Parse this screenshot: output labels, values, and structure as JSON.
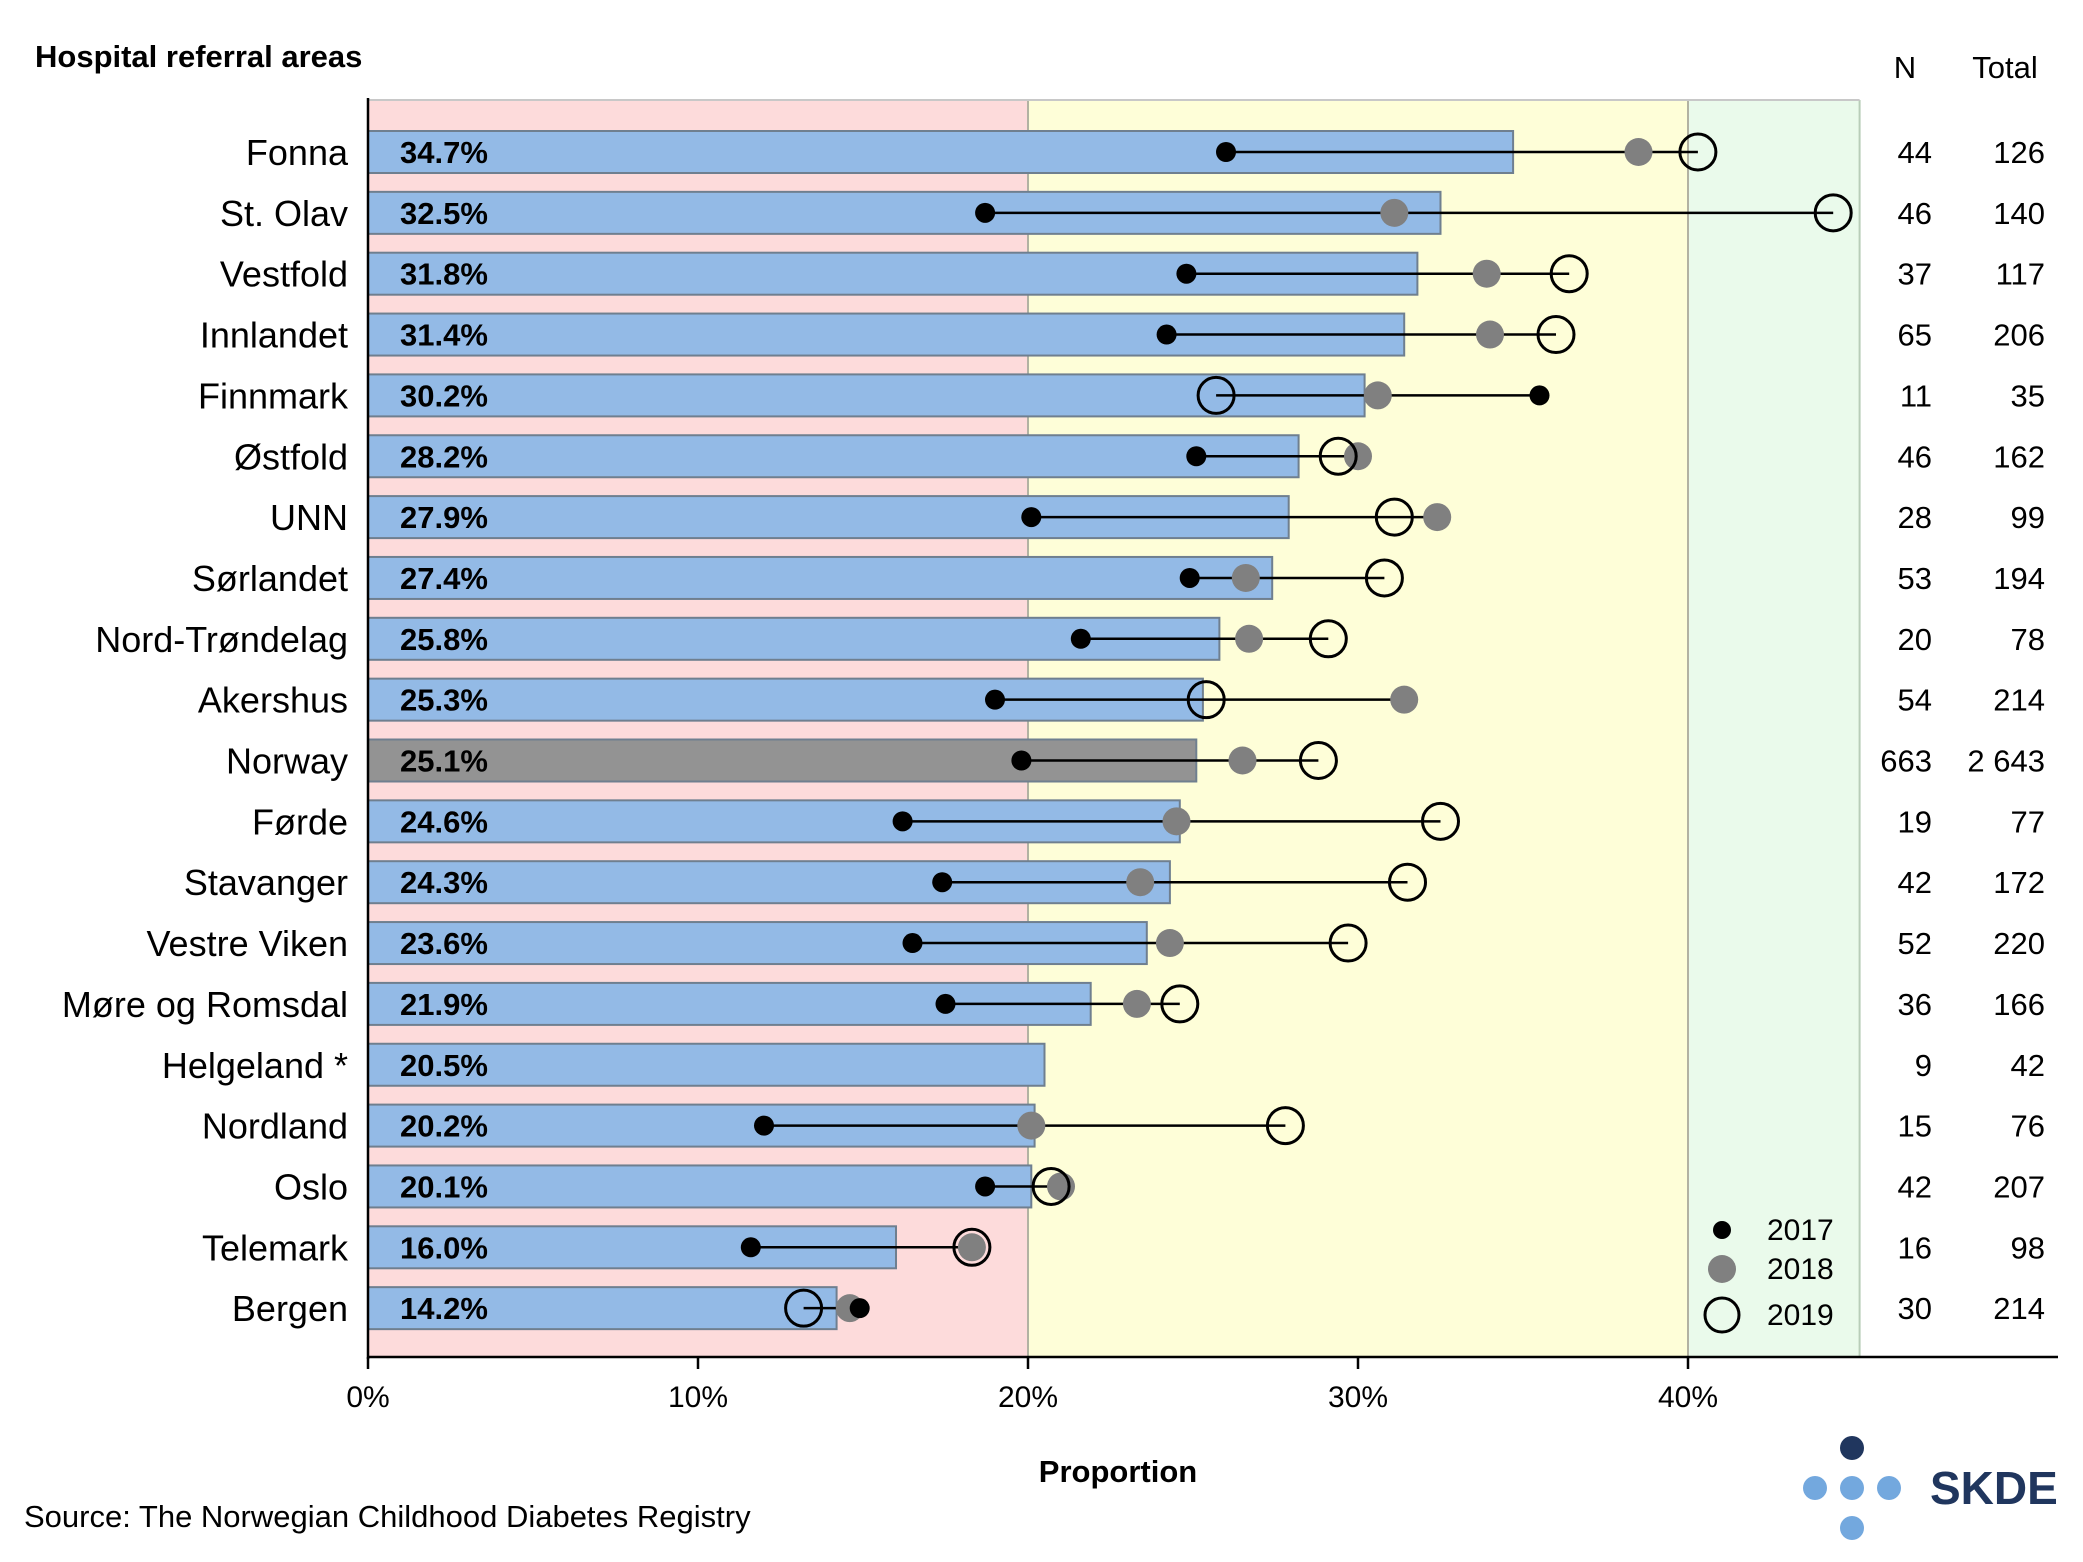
{
  "header": {
    "title": "Hospital referral areas",
    "col_n": "N",
    "col_total": "Total"
  },
  "source": "Source: The Norwegian Childhood Diabetes Registry",
  "logo": {
    "text": "SKDE",
    "dark_color": "#20365e",
    "light_color": "#73a8de"
  },
  "colors": {
    "bar": "#93bae6",
    "bar_highlight": "#939393",
    "zone_low": "#fddbdb",
    "zone_mid": "#fefed8",
    "zone_high": "#eafaeb",
    "marker_2017": "#000000",
    "marker_2018": "#808080"
  },
  "chart_data": {
    "type": "bar",
    "orientation": "horizontal",
    "xlabel": "Proportion",
    "xlim": [
      0,
      0.52
    ],
    "x_ticks": [
      0,
      0.1,
      0.2,
      0.3,
      0.4
    ],
    "x_tick_labels": [
      "0%",
      "10%",
      "20%",
      "30%",
      "40%"
    ],
    "zones": [
      {
        "from": 0,
        "to": 0.2,
        "level": "low"
      },
      {
        "from": 0.2,
        "to": 0.4,
        "level": "mid"
      },
      {
        "from": 0.4,
        "to": 0.452,
        "level": "high"
      }
    ],
    "legend": {
      "position": "bottom-right",
      "entries": [
        {
          "label": "2017",
          "marker": "filled-black"
        },
        {
          "label": "2018",
          "marker": "filled-gray"
        },
        {
          "label": "2019",
          "marker": "open-circle"
        }
      ]
    },
    "categories": [
      {
        "name": "Fonna",
        "value": 0.347,
        "label": "34.7%",
        "y2017": 0.26,
        "y2018": 0.385,
        "y2019": 0.403,
        "n": "44",
        "total": "126"
      },
      {
        "name": "St. Olav",
        "value": 0.325,
        "label": "32.5%",
        "y2017": 0.187,
        "y2018": 0.311,
        "y2019": 0.444,
        "n": "46",
        "total": "140"
      },
      {
        "name": "Vestfold",
        "value": 0.318,
        "label": "31.8%",
        "y2017": 0.248,
        "y2018": 0.339,
        "y2019": 0.364,
        "n": "37",
        "total": "117"
      },
      {
        "name": "Innlandet",
        "value": 0.314,
        "label": "31.4%",
        "y2017": 0.242,
        "y2018": 0.34,
        "y2019": 0.36,
        "n": "65",
        "total": "206"
      },
      {
        "name": "Finnmark",
        "value": 0.302,
        "label": "30.2%",
        "y2017": 0.355,
        "y2018": 0.306,
        "y2019": 0.257,
        "n": "11",
        "total": "35"
      },
      {
        "name": "Østfold",
        "value": 0.282,
        "label": "28.2%",
        "y2017": 0.251,
        "y2018": 0.3,
        "y2019": 0.294,
        "n": "46",
        "total": "162"
      },
      {
        "name": "UNN",
        "value": 0.279,
        "label": "27.9%",
        "y2017": 0.201,
        "y2018": 0.324,
        "y2019": 0.311,
        "n": "28",
        "total": "99"
      },
      {
        "name": "Sørlandet",
        "value": 0.274,
        "label": "27.4%",
        "y2017": 0.249,
        "y2018": 0.266,
        "y2019": 0.308,
        "n": "53",
        "total": "194"
      },
      {
        "name": "Nord-Trøndelag",
        "value": 0.258,
        "label": "25.8%",
        "y2017": 0.216,
        "y2018": 0.267,
        "y2019": 0.291,
        "n": "20",
        "total": "78"
      },
      {
        "name": "Akershus",
        "value": 0.253,
        "label": "25.3%",
        "y2017": 0.19,
        "y2018": 0.314,
        "y2019": 0.254,
        "n": "54",
        "total": "214"
      },
      {
        "name": "Norway",
        "value": 0.251,
        "label": "25.1%",
        "y2017": 0.198,
        "y2018": 0.265,
        "y2019": 0.288,
        "n": "663",
        "total": "2 643",
        "highlight": true
      },
      {
        "name": "Førde",
        "value": 0.246,
        "label": "24.6%",
        "y2017": 0.162,
        "y2018": 0.245,
        "y2019": 0.325,
        "n": "19",
        "total": "77"
      },
      {
        "name": "Stavanger",
        "value": 0.243,
        "label": "24.3%",
        "y2017": 0.174,
        "y2018": 0.234,
        "y2019": 0.315,
        "n": "42",
        "total": "172"
      },
      {
        "name": "Vestre Viken",
        "value": 0.236,
        "label": "23.6%",
        "y2017": 0.165,
        "y2018": 0.243,
        "y2019": 0.297,
        "n": "52",
        "total": "220"
      },
      {
        "name": "Møre og Romsdal",
        "value": 0.219,
        "label": "21.9%",
        "y2017": 0.175,
        "y2018": 0.233,
        "y2019": 0.246,
        "n": "36",
        "total": "166"
      },
      {
        "name": "Helgeland *",
        "value": 0.205,
        "label": "20.5%",
        "y2017": null,
        "y2018": null,
        "y2019": null,
        "n": "9",
        "total": "42"
      },
      {
        "name": "Nordland",
        "value": 0.202,
        "label": "20.2%",
        "y2017": 0.12,
        "y2018": 0.201,
        "y2019": 0.278,
        "n": "15",
        "total": "76"
      },
      {
        "name": "Oslo",
        "value": 0.201,
        "label": "20.1%",
        "y2017": 0.187,
        "y2018": 0.21,
        "y2019": 0.207,
        "n": "42",
        "total": "207"
      },
      {
        "name": "Telemark",
        "value": 0.16,
        "label": "16.0%",
        "y2017": 0.116,
        "y2018": 0.183,
        "y2019": 0.183,
        "n": "16",
        "total": "98"
      },
      {
        "name": "Bergen",
        "value": 0.142,
        "label": "14.2%",
        "y2017": 0.149,
        "y2018": 0.146,
        "y2019": 0.132,
        "n": "30",
        "total": "214"
      }
    ]
  }
}
